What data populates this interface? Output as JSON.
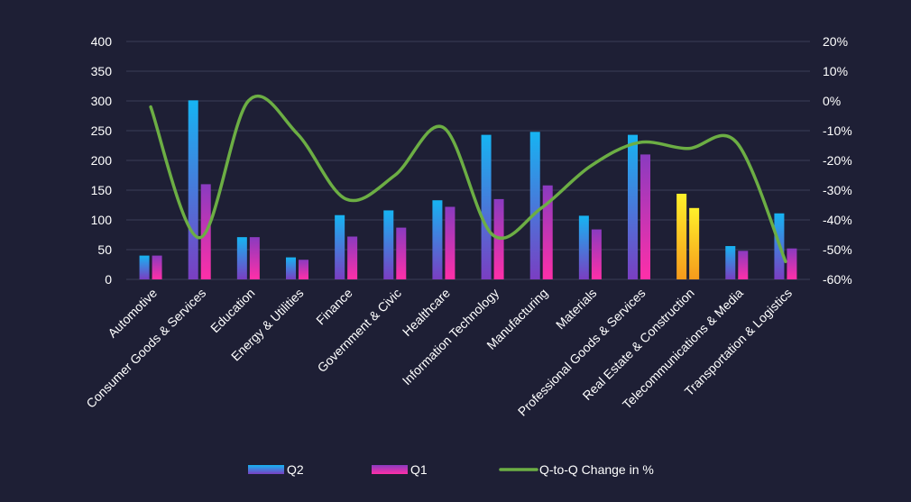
{
  "colors": {
    "background": "#1e1f35",
    "gridline": "#3a3c58",
    "text": "#ffffff",
    "q2_gradient": [
      "#16b4f2",
      "#7a3ec2"
    ],
    "q1_gradient": [
      "#8a3bc0",
      "#ff2fa8"
    ],
    "highlight_gradient": [
      "#fff02a",
      "#f59a1c"
    ],
    "line": "#6cae44"
  },
  "chart_data": {
    "type": "bar",
    "categories": [
      "Automotive",
      "Consumer Goods & Services",
      "Education",
      "Energy & Utilities",
      "Finance",
      "Government & Civic",
      "Healthcare",
      "Information Technology",
      "Manufacturing",
      "Materials",
      "Professional Goods & Services",
      "Real Estate & Construction",
      "Telecommunications & Media",
      "Transportation & Logistics"
    ],
    "series": [
      {
        "name": "Q2",
        "type": "bar",
        "axis": "left",
        "values": [
          40,
          301,
          71,
          37,
          108,
          116,
          133,
          243,
          248,
          107,
          243,
          144,
          56,
          111
        ]
      },
      {
        "name": "Q1",
        "type": "bar",
        "axis": "left",
        "values": [
          40,
          160,
          71,
          33,
          72,
          87,
          122,
          135,
          158,
          84,
          210,
          120,
          48,
          52
        ]
      },
      {
        "name": "Q-to-Q Change in %",
        "type": "line",
        "axis": "right",
        "values": [
          -2,
          -46,
          0,
          -11,
          -33,
          -25,
          -9,
          -45,
          -36,
          -22,
          -14,
          -16,
          -14,
          -54
        ]
      }
    ],
    "highlight_index": 11,
    "y_left": {
      "min": 0,
      "max": 400,
      "step": 50,
      "tick_labels": [
        "0",
        "50",
        "100",
        "150",
        "200",
        "250",
        "300",
        "350",
        "400"
      ]
    },
    "y_right": {
      "min": -60,
      "max": 20,
      "step": 10,
      "tick_labels": [
        "-60%",
        "-50%",
        "-40%",
        "-30%",
        "-20%",
        "-10%",
        "0%",
        "10%",
        "20%"
      ]
    },
    "grid": true,
    "legend": {
      "position": "bottom",
      "items": [
        {
          "label": "Q2",
          "marker": "bar-q2"
        },
        {
          "label": "Q1",
          "marker": "bar-q1"
        },
        {
          "label": "Q-to-Q Change in %",
          "marker": "line"
        }
      ]
    }
  }
}
